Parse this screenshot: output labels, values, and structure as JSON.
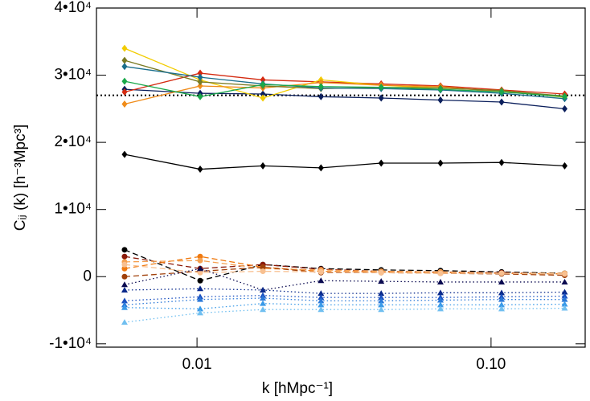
{
  "chart_data": {
    "type": "line",
    "xlabel": "k [hMpc⁻¹]",
    "ylabel": "Cᵢⱼ (k) [h⁻³Mpc³]",
    "xscale": "log",
    "xlim": [
      0.00455,
      0.209
    ],
    "xticks": [
      0.01,
      {
        "value": 0.1,
        "label": "0.10"
      }
    ],
    "ylim": [
      -10500,
      40000
    ],
    "yticks": [
      {
        "value": -10000,
        "label": "-1•10⁴"
      },
      0,
      {
        "value": 10000,
        "label": "1•10⁴"
      },
      {
        "value": 20000,
        "label": "2•10⁴"
      },
      {
        "value": 30000,
        "label": "3•10⁴"
      },
      {
        "value": 40000,
        "label": "4•10⁴"
      }
    ],
    "reference_line": 27000,
    "x": [
      0.00567,
      0.01025,
      0.01675,
      0.0264,
      0.0423,
      0.0673,
      0.1086,
      0.178
    ],
    "series": [
      {
        "color": "#000000",
        "style": "solid",
        "marker": "diamond",
        "values": [
          18200,
          16000,
          16500,
          16200,
          16900,
          16900,
          17000,
          16500
        ]
      },
      {
        "color": "#0b1f5c",
        "style": "solid",
        "marker": "diamond",
        "values": [
          27900,
          27300,
          27200,
          26800,
          26600,
          26300,
          26000,
          25000
        ]
      },
      {
        "color": "#d42a10",
        "style": "solid",
        "marker": "diamond",
        "values": [
          27500,
          30300,
          29300,
          29000,
          28700,
          28400,
          27800,
          27200
        ]
      },
      {
        "color": "#f2cc00",
        "style": "solid",
        "marker": "diamond",
        "values": [
          34000,
          29300,
          26600,
          29300,
          28500,
          28100,
          27700,
          26700
        ]
      },
      {
        "color": "#f08c1a",
        "style": "solid",
        "marker": "diamond",
        "values": [
          25700,
          28400,
          28100,
          28900,
          28500,
          28300,
          27500,
          26900
        ]
      },
      {
        "color": "#7a7a22",
        "style": "solid",
        "marker": "diamond",
        "values": [
          32200,
          29000,
          28400,
          28000,
          28200,
          28100,
          27700,
          26900
        ]
      },
      {
        "color": "#1a6e8c",
        "style": "solid",
        "marker": "diamond",
        "values": [
          31300,
          29700,
          28700,
          28100,
          28000,
          27800,
          27300,
          26500
        ]
      },
      {
        "color": "#1aa84a",
        "style": "solid",
        "marker": "diamond",
        "values": [
          29100,
          26800,
          28600,
          28300,
          28200,
          27900,
          27500,
          26800
        ]
      },
      {
        "color": "#000000",
        "style": "dashed",
        "marker": "circle",
        "values": [
          4000,
          -600,
          1800,
          1200,
          1000,
          900,
          700,
          500
        ]
      },
      {
        "color": "#8b1a0a",
        "style": "dashed",
        "marker": "circle",
        "values": [
          3000,
          1200,
          1800,
          1100,
          800,
          700,
          600,
          400
        ]
      },
      {
        "color": "#f07a10",
        "style": "dashed",
        "marker": "circle",
        "values": [
          1200,
          3000,
          1400,
          800,
          700,
          600,
          500,
          400
        ]
      },
      {
        "color": "#f5a050",
        "style": "dashed",
        "marker": "circle",
        "values": [
          2200,
          2400,
          1200,
          1000,
          800,
          700,
          500,
          500
        ]
      },
      {
        "color": "#a0400a",
        "style": "dashed",
        "marker": "circle",
        "values": [
          0,
          800,
          1400,
          600,
          600,
          500,
          400,
          200
        ]
      },
      {
        "color": "#f8c090",
        "style": "dashed",
        "marker": "circle",
        "values": [
          1800,
          600,
          800,
          700,
          600,
          500,
          500,
          400
        ]
      },
      {
        "color": "#0a0a50",
        "style": "dotted",
        "marker": "triangle",
        "values": [
          -1200,
          1200,
          -2000,
          -600,
          -700,
          -800,
          -800,
          -800
        ]
      },
      {
        "color": "#0a2a8c",
        "style": "dotted",
        "marker": "triangle",
        "values": [
          -2000,
          -1800,
          -2000,
          -2500,
          -2500,
          -2400,
          -2400,
          -2300
        ]
      },
      {
        "color": "#1a50c0",
        "style": "dotted",
        "marker": "triangle",
        "values": [
          -3600,
          -3000,
          -2800,
          -3100,
          -3100,
          -3100,
          -3000,
          -2900
        ]
      },
      {
        "color": "#2a78d8",
        "style": "dotted",
        "marker": "triangle",
        "values": [
          -4200,
          -3400,
          -3200,
          -3600,
          -3600,
          -3500,
          -3400,
          -3400
        ]
      },
      {
        "color": "#3a9ae8",
        "style": "dotted",
        "marker": "triangle",
        "values": [
          -4600,
          -4800,
          -4000,
          -4200,
          -4200,
          -4200,
          -4200,
          -4100
        ]
      },
      {
        "color": "#70bff0",
        "style": "dotted",
        "marker": "triangle",
        "values": [
          -6800,
          -5400,
          -4900,
          -4900,
          -4900,
          -4800,
          -4800,
          -4700
        ]
      }
    ]
  }
}
